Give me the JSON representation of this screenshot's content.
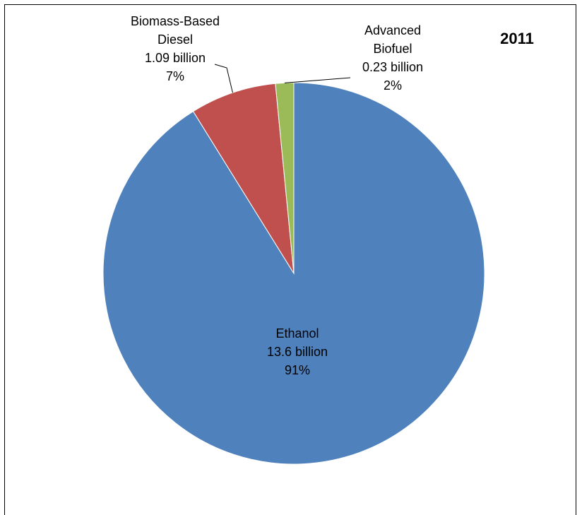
{
  "chart_data": {
    "type": "pie",
    "title": "2011",
    "slices": [
      {
        "label": "Ethanol",
        "value_text": "13.6 billion",
        "percent_text": "91%",
        "value": 13.6,
        "color": "#4F81BD"
      },
      {
        "label": "Biomass-Based Diesel",
        "label_lines": [
          "Biomass-Based",
          "Diesel"
        ],
        "value_text": "1.09 billion",
        "percent_text": "7%",
        "value": 1.09,
        "color": "#C0504D"
      },
      {
        "label": "Advanced Biofuel",
        "label_lines": [
          "Advanced",
          "Biofuel"
        ],
        "value_text": "0.23 billion",
        "percent_text": "2%",
        "value": 0.23,
        "color": "#9BBB59"
      }
    ]
  }
}
